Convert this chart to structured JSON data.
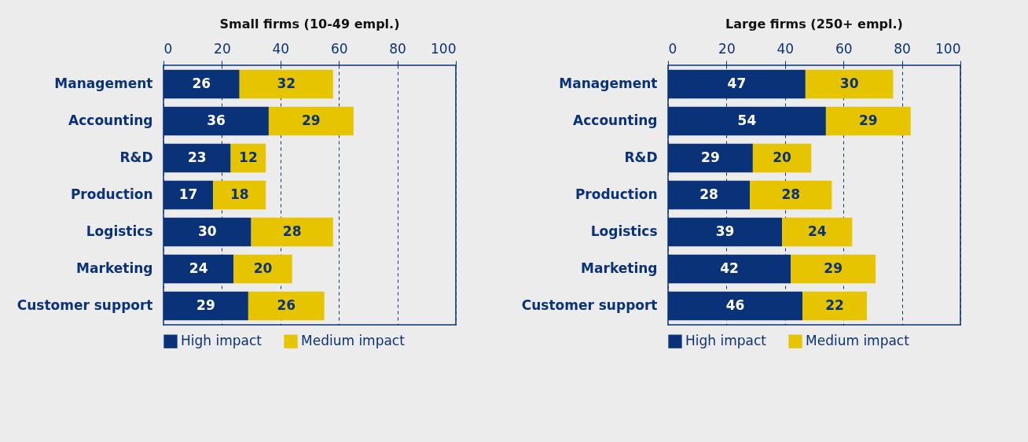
{
  "chart_data": [
    {
      "type": "bar",
      "title": "Small firms (10-49 empl.)",
      "orientation": "horizontal",
      "stacked": true,
      "categories": [
        "Management",
        "Accounting",
        "R&D",
        "Production",
        "Logistics",
        "Marketing",
        "Customer support"
      ],
      "series": [
        {
          "name": "High impact",
          "color": "#0a3278",
          "values": [
            26,
            36,
            23,
            17,
            30,
            24,
            29
          ]
        },
        {
          "name": "Medium impact",
          "color": "#e6c400",
          "values": [
            32,
            29,
            12,
            18,
            28,
            20,
            26
          ]
        }
      ],
      "xlim": [
        0,
        100
      ],
      "xticks": [
        0,
        20,
        40,
        60,
        80,
        100
      ],
      "grid": "x",
      "legend": "bottom",
      "data_labels": true
    },
    {
      "type": "bar",
      "title": "Large firms (250+ empl.)",
      "orientation": "horizontal",
      "stacked": true,
      "categories": [
        "Management",
        "Accounting",
        "R&D",
        "Production",
        "Logistics",
        "Marketing",
        "Customer support"
      ],
      "series": [
        {
          "name": "High impact",
          "color": "#0a3278",
          "values": [
            47,
            54,
            29,
            28,
            39,
            42,
            46
          ]
        },
        {
          "name": "Medium impact",
          "color": "#e6c400",
          "values": [
            30,
            29,
            20,
            28,
            24,
            29,
            22
          ]
        }
      ],
      "xlim": [
        0,
        100
      ],
      "xticks": [
        0,
        20,
        40,
        60,
        80,
        100
      ],
      "grid": "x",
      "legend": "bottom",
      "data_labels": true
    }
  ]
}
